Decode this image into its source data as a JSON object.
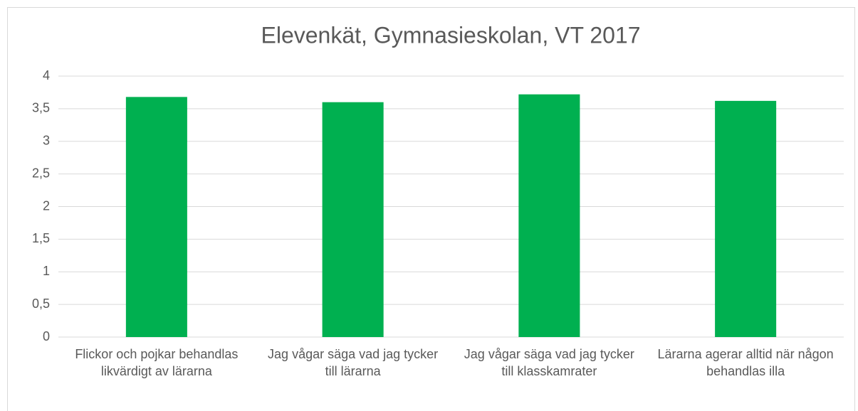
{
  "chart_data": {
    "type": "bar",
    "title": "Elevenkät, Gymnasieskolan, VT 2017",
    "categories": [
      "Flickor och pojkar behandlas likvärdigt av lärarna",
      "Jag vågar säga vad jag tycker till lärarna",
      "Jag vågar säga vad jag tycker till klasskamrater",
      "Lärarna agerar alltid när någon behandlas illa"
    ],
    "values": [
      3.68,
      3.6,
      3.72,
      3.62
    ],
    "color": "#00b050",
    "ylim": [
      0,
      4
    ],
    "yticks": [
      0,
      {
        "value": 0.5,
        "label": "0,5"
      },
      1,
      {
        "value": 1.5,
        "label": "1,5"
      },
      2,
      {
        "value": 2.5,
        "label": "2,5"
      },
      3,
      {
        "value": 3.5,
        "label": "3,5"
      },
      4
    ],
    "grid": true
  }
}
